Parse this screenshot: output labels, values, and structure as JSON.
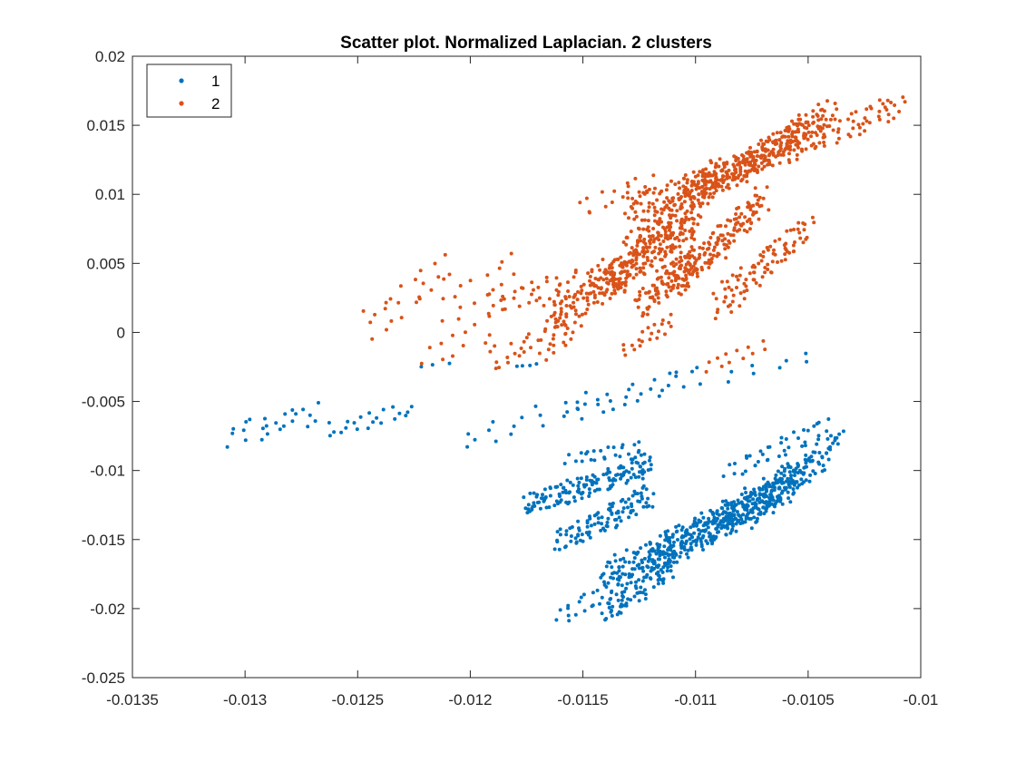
{
  "chart_data": {
    "type": "scatter",
    "title": "Scatter plot. Normalized Laplacian. 2 clusters",
    "xlabel": "",
    "ylabel": "",
    "xlim": [
      -0.0135,
      -0.01
    ],
    "ylim": [
      -0.025,
      0.02
    ],
    "xticks": [
      -0.0135,
      -0.013,
      -0.0125,
      -0.012,
      -0.0115,
      -0.011,
      -0.0105,
      -0.01
    ],
    "xtick_labels": [
      "-0.0135",
      "-0.013",
      "-0.0125",
      "-0.012",
      "-0.0115",
      "-0.011",
      "-0.0105",
      "-0.01"
    ],
    "yticks": [
      -0.025,
      -0.02,
      -0.015,
      -0.01,
      -0.005,
      0,
      0.005,
      0.01,
      0.015,
      0.02
    ],
    "ytick_labels": [
      "-0.025",
      "-0.02",
      "-0.015",
      "-0.01",
      "-0.005",
      "0",
      "0.005",
      "0.01",
      "0.015",
      "0.02"
    ],
    "grid": false,
    "legend": {
      "placement": "top-left",
      "entries": [
        "1",
        "2"
      ]
    },
    "series": [
      {
        "name": "1",
        "color": "#0072BD",
        "groups": [
          {
            "x": [
              -0.01305,
              -0.0127
            ],
            "y": [
              -0.0075,
              -0.0058
            ],
            "n": 24,
            "rows": 3,
            "jitter": [
              3e-05,
              0.0004
            ]
          },
          {
            "x": [
              -0.01262,
              -0.01228
            ],
            "y": [
              -0.0071,
              -0.0057
            ],
            "n": 20,
            "rows": 3,
            "jitter": [
              3e-05,
              0.0003
            ]
          },
          {
            "x": [
              -0.01222,
              -0.0121
            ],
            "y": [
              -0.0025,
              -0.0022
            ],
            "n": 3,
            "rows": 1,
            "jitter": [
              1e-05,
              0.0001
            ]
          },
          {
            "x": [
              -0.012,
              -0.0115
            ],
            "y": [
              -0.0078,
              -0.005
            ],
            "n": 18,
            "rows": 3,
            "jitter": [
              3e-05,
              0.0004
            ]
          },
          {
            "x": [
              -0.0115,
              -0.011
            ],
            "y": [
              -0.0056,
              -0.003
            ],
            "n": 26,
            "rows": 3,
            "jitter": [
              3e-05,
              0.0004
            ]
          },
          {
            "x": [
              -0.01085,
              -0.0105
            ],
            "y": [
              -0.0032,
              -0.0018
            ],
            "n": 8,
            "rows": 2,
            "jitter": [
              2e-05,
              0.0002
            ]
          },
          {
            "x": [
              -0.0118,
              -0.0117
            ],
            "y": [
              -0.0025,
              -0.0023
            ],
            "n": 4,
            "rows": 1,
            "jitter": [
              1e-05,
              0.0001
            ]
          },
          {
            "x": [
              -0.01175,
              -0.0112
            ],
            "y": [
              -0.0125,
              -0.0095
            ],
            "n": 150,
            "rows": 4,
            "jitter": [
              3e-05,
              0.0004
            ]
          },
          {
            "x": [
              -0.0116,
              -0.0112
            ],
            "y": [
              -0.0152,
              -0.0118
            ],
            "n": 100,
            "rows": 3,
            "jitter": [
              3e-05,
              0.0004
            ]
          },
          {
            "x": [
              -0.01155,
              -0.01125
            ],
            "y": [
              -0.0092,
              -0.0083
            ],
            "n": 24,
            "rows": 2,
            "jitter": [
              3e-05,
              0.0002
            ]
          },
          {
            "x": [
              -0.0114,
              -0.0106
            ],
            "y": [
              -0.0178,
              -0.0115
            ],
            "n": 260,
            "rows": 5,
            "jitter": [
              4e-05,
              0.0006
            ]
          },
          {
            "x": [
              -0.0112,
              -0.0105
            ],
            "y": [
              -0.0165,
              -0.01
            ],
            "n": 220,
            "rows": 5,
            "jitter": [
              4e-05,
              0.0006
            ]
          },
          {
            "x": [
              -0.0109,
              -0.0104
            ],
            "y": [
              -0.014,
              -0.0085
            ],
            "n": 120,
            "rows": 4,
            "jitter": [
              4e-05,
              0.0005
            ]
          },
          {
            "x": [
              -0.01085,
              -0.0104
            ],
            "y": [
              -0.01,
              -0.0068
            ],
            "n": 40,
            "rows": 2,
            "jitter": [
              3e-05,
              0.0003
            ]
          },
          {
            "x": [
              -0.0114,
              -0.0111
            ],
            "y": [
              -0.0203,
              -0.0168
            ],
            "n": 80,
            "rows": 3,
            "jitter": [
              3e-05,
              0.0004
            ]
          },
          {
            "x": [
              -0.0116,
              -0.0114
            ],
            "y": [
              -0.0205,
              -0.0189
            ],
            "n": 18,
            "rows": 2,
            "jitter": [
              2e-05,
              0.0003
            ]
          },
          {
            "x": [
              -0.0104,
              -0.01035
            ],
            "y": [
              -0.008,
              -0.0072
            ],
            "n": 5,
            "rows": 1,
            "jitter": [
              1e-05,
              0.0001
            ]
          }
        ]
      },
      {
        "name": "2",
        "color": "#D95319",
        "groups": [
          {
            "x": [
              -0.01245,
              -0.0121
            ],
            "y": [
              0.0005,
              0.0045
            ],
            "n": 22,
            "rows": 3,
            "jitter": [
              3e-05,
              0.0006
            ]
          },
          {
            "x": [
              -0.0121,
              -0.0118
            ],
            "y": [
              0.0015,
              0.0048
            ],
            "n": 16,
            "rows": 2,
            "jitter": [
              3e-05,
              0.0005
            ]
          },
          {
            "x": [
              -0.0122,
              -0.0119
            ],
            "y": [
              -0.0018,
              0.0004
            ],
            "n": 12,
            "rows": 2,
            "jitter": [
              3e-05,
              0.0004
            ]
          },
          {
            "x": [
              -0.0119,
              -0.0116
            ],
            "y": [
              -0.002,
              0.0
            ],
            "n": 26,
            "rows": 3,
            "jitter": [
              3e-05,
              0.0004
            ]
          },
          {
            "x": [
              -0.01165,
              -0.0115
            ],
            "y": [
              -0.0015,
              0.0008
            ],
            "n": 12,
            "rows": 2,
            "jitter": [
              2e-05,
              0.0003
            ]
          },
          {
            "x": [
              -0.0119,
              -0.0114
            ],
            "y": [
              0.002,
              0.0045
            ],
            "n": 40,
            "rows": 3,
            "jitter": [
              3e-05,
              0.0004
            ]
          },
          {
            "x": [
              -0.01165,
              -0.0113
            ],
            "y": [
              0.001,
              0.0045
            ],
            "n": 110,
            "rows": 4,
            "jitter": [
              3e-05,
              0.0006
            ]
          },
          {
            "x": [
              -0.0114,
              -0.011
            ],
            "y": [
              0.0035,
              0.008
            ],
            "n": 160,
            "rows": 5,
            "jitter": [
              3e-05,
              0.0006
            ]
          },
          {
            "x": [
              -0.01125,
              -0.011
            ],
            "y": [
              0.002,
              0.0055
            ],
            "n": 90,
            "rows": 3,
            "jitter": [
              3e-05,
              0.0005
            ]
          },
          {
            "x": [
              -0.0111,
              -0.0107
            ],
            "y": [
              0.0035,
              0.0095
            ],
            "n": 150,
            "rows": 5,
            "jitter": [
              3e-05,
              0.0006
            ]
          },
          {
            "x": [
              -0.0109,
              -0.0105
            ],
            "y": [
              0.002,
              0.0075
            ],
            "n": 90,
            "rows": 4,
            "jitter": [
              3e-05,
              0.0006
            ]
          },
          {
            "x": [
              -0.0113,
              -0.0109
            ],
            "y": [
              0.006,
              0.0115
            ],
            "n": 140,
            "rows": 5,
            "jitter": [
              3e-05,
              0.0006
            ]
          },
          {
            "x": [
              -0.0113,
              -0.0107
            ],
            "y": [
              0.009,
              0.0125
            ],
            "n": 120,
            "rows": 4,
            "jitter": [
              3e-05,
              0.0005
            ]
          },
          {
            "x": [
              -0.011,
              -0.0105
            ],
            "y": [
              0.01,
              0.015
            ],
            "n": 160,
            "rows": 5,
            "jitter": [
              3e-05,
              0.0005
            ]
          },
          {
            "x": [
              -0.0108,
              -0.0104
            ],
            "y": [
              0.0115,
              0.016
            ],
            "n": 100,
            "rows": 4,
            "jitter": [
              3e-05,
              0.0005
            ]
          },
          {
            "x": [
              -0.0106,
              -0.0101
            ],
            "y": [
              0.013,
              0.0165
            ],
            "n": 70,
            "rows": 3,
            "jitter": [
              3e-05,
              0.0004
            ]
          },
          {
            "x": [
              -0.0115,
              -0.0112
            ],
            "y": [
              0.009,
              0.011
            ],
            "n": 16,
            "rows": 2,
            "jitter": [
              3e-05,
              0.0003
            ]
          },
          {
            "x": [
              -0.0113,
              -0.0111
            ],
            "y": [
              -0.0012,
              0.0008
            ],
            "n": 20,
            "rows": 3,
            "jitter": [
              2e-05,
              0.0003
            ]
          },
          {
            "x": [
              -0.01095,
              -0.0107
            ],
            "y": [
              -0.0025,
              -0.001
            ],
            "n": 12,
            "rows": 2,
            "jitter": [
              2e-05,
              0.0002
            ]
          }
        ]
      }
    ]
  }
}
